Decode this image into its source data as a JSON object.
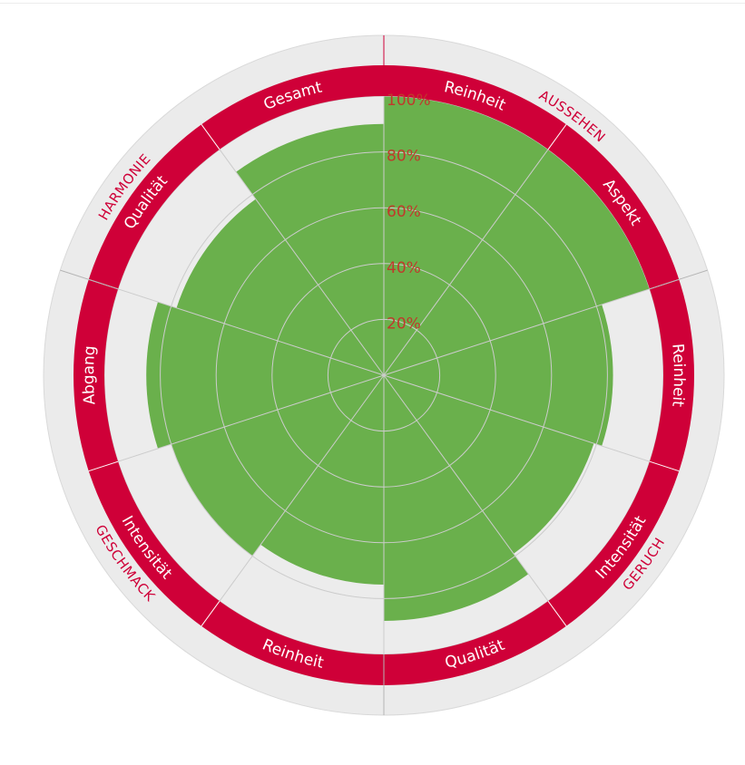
{
  "chart_data": {
    "type": "polar-bar",
    "rlim": [
      0,
      100
    ],
    "r_ticks": [
      "20%",
      "40%",
      "60%",
      "80%",
      "100%"
    ],
    "colors": {
      "bar": "#6ab04c",
      "band": "#cf0038",
      "outer_ring": "#ebebeb",
      "background": "#ececec",
      "grid": "#cccccc",
      "tick": "#c0392b"
    },
    "groups": [
      {
        "name": "AUSSEHEN",
        "span": [
          0,
          2
        ]
      },
      {
        "name": "GERUCH",
        "span": [
          2,
          5
        ]
      },
      {
        "name": "GESCHMACK",
        "span": [
          5,
          8
        ]
      },
      {
        "name": "HARMONIE",
        "span": [
          8,
          9
        ]
      }
    ],
    "categories": [
      "Reinheit",
      "Aspekt",
      "Reinheit",
      "Intensität",
      "Qualität",
      "Reinheit",
      "Intensität",
      "Abgang",
      "Qualität",
      "Gesamt"
    ],
    "values": [
      100,
      100,
      82,
      79,
      88,
      75,
      80,
      85,
      78,
      90
    ]
  }
}
